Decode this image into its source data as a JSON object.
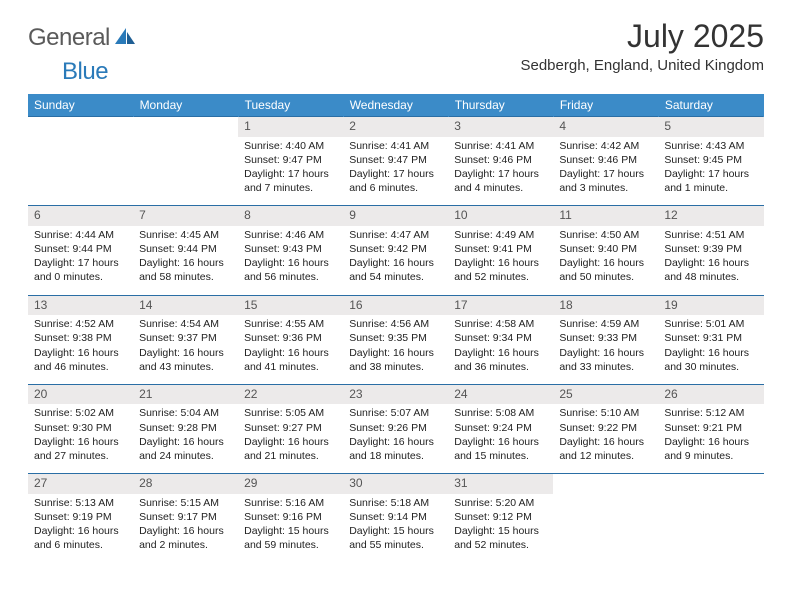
{
  "logo": {
    "general": "General",
    "blue": "Blue"
  },
  "title": "July 2025",
  "location": "Sedbergh, England, United Kingdom",
  "columns": [
    "Sunday",
    "Monday",
    "Tuesday",
    "Wednesday",
    "Thursday",
    "Friday",
    "Saturday"
  ],
  "colors": {
    "header_bg": "#3b8bc8",
    "header_text": "#ffffff",
    "daynum_bg": "#eceaea",
    "rule": "#2a6ea5",
    "logo_gray": "#5a5a5a",
    "logo_blue": "#2a7ab9",
    "background": "#ffffff"
  },
  "weeks": [
    [
      null,
      null,
      {
        "n": "1",
        "sr": "4:40 AM",
        "ss": "9:47 PM",
        "dl": "17 hours and 7 minutes."
      },
      {
        "n": "2",
        "sr": "4:41 AM",
        "ss": "9:47 PM",
        "dl": "17 hours and 6 minutes."
      },
      {
        "n": "3",
        "sr": "4:41 AM",
        "ss": "9:46 PM",
        "dl": "17 hours and 4 minutes."
      },
      {
        "n": "4",
        "sr": "4:42 AM",
        "ss": "9:46 PM",
        "dl": "17 hours and 3 minutes."
      },
      {
        "n": "5",
        "sr": "4:43 AM",
        "ss": "9:45 PM",
        "dl": "17 hours and 1 minute."
      }
    ],
    [
      {
        "n": "6",
        "sr": "4:44 AM",
        "ss": "9:44 PM",
        "dl": "17 hours and 0 minutes."
      },
      {
        "n": "7",
        "sr": "4:45 AM",
        "ss": "9:44 PM",
        "dl": "16 hours and 58 minutes."
      },
      {
        "n": "8",
        "sr": "4:46 AM",
        "ss": "9:43 PM",
        "dl": "16 hours and 56 minutes."
      },
      {
        "n": "9",
        "sr": "4:47 AM",
        "ss": "9:42 PM",
        "dl": "16 hours and 54 minutes."
      },
      {
        "n": "10",
        "sr": "4:49 AM",
        "ss": "9:41 PM",
        "dl": "16 hours and 52 minutes."
      },
      {
        "n": "11",
        "sr": "4:50 AM",
        "ss": "9:40 PM",
        "dl": "16 hours and 50 minutes."
      },
      {
        "n": "12",
        "sr": "4:51 AM",
        "ss": "9:39 PM",
        "dl": "16 hours and 48 minutes."
      }
    ],
    [
      {
        "n": "13",
        "sr": "4:52 AM",
        "ss": "9:38 PM",
        "dl": "16 hours and 46 minutes."
      },
      {
        "n": "14",
        "sr": "4:54 AM",
        "ss": "9:37 PM",
        "dl": "16 hours and 43 minutes."
      },
      {
        "n": "15",
        "sr": "4:55 AM",
        "ss": "9:36 PM",
        "dl": "16 hours and 41 minutes."
      },
      {
        "n": "16",
        "sr": "4:56 AM",
        "ss": "9:35 PM",
        "dl": "16 hours and 38 minutes."
      },
      {
        "n": "17",
        "sr": "4:58 AM",
        "ss": "9:34 PM",
        "dl": "16 hours and 36 minutes."
      },
      {
        "n": "18",
        "sr": "4:59 AM",
        "ss": "9:33 PM",
        "dl": "16 hours and 33 minutes."
      },
      {
        "n": "19",
        "sr": "5:01 AM",
        "ss": "9:31 PM",
        "dl": "16 hours and 30 minutes."
      }
    ],
    [
      {
        "n": "20",
        "sr": "5:02 AM",
        "ss": "9:30 PM",
        "dl": "16 hours and 27 minutes."
      },
      {
        "n": "21",
        "sr": "5:04 AM",
        "ss": "9:28 PM",
        "dl": "16 hours and 24 minutes."
      },
      {
        "n": "22",
        "sr": "5:05 AM",
        "ss": "9:27 PM",
        "dl": "16 hours and 21 minutes."
      },
      {
        "n": "23",
        "sr": "5:07 AM",
        "ss": "9:26 PM",
        "dl": "16 hours and 18 minutes."
      },
      {
        "n": "24",
        "sr": "5:08 AM",
        "ss": "9:24 PM",
        "dl": "16 hours and 15 minutes."
      },
      {
        "n": "25",
        "sr": "5:10 AM",
        "ss": "9:22 PM",
        "dl": "16 hours and 12 minutes."
      },
      {
        "n": "26",
        "sr": "5:12 AM",
        "ss": "9:21 PM",
        "dl": "16 hours and 9 minutes."
      }
    ],
    [
      {
        "n": "27",
        "sr": "5:13 AM",
        "ss": "9:19 PM",
        "dl": "16 hours and 6 minutes."
      },
      {
        "n": "28",
        "sr": "5:15 AM",
        "ss": "9:17 PM",
        "dl": "16 hours and 2 minutes."
      },
      {
        "n": "29",
        "sr": "5:16 AM",
        "ss": "9:16 PM",
        "dl": "15 hours and 59 minutes."
      },
      {
        "n": "30",
        "sr": "5:18 AM",
        "ss": "9:14 PM",
        "dl": "15 hours and 55 minutes."
      },
      {
        "n": "31",
        "sr": "5:20 AM",
        "ss": "9:12 PM",
        "dl": "15 hours and 52 minutes."
      },
      null,
      null
    ]
  ],
  "labels": {
    "sunrise": "Sunrise:",
    "sunset": "Sunset:",
    "daylight": "Daylight:"
  }
}
